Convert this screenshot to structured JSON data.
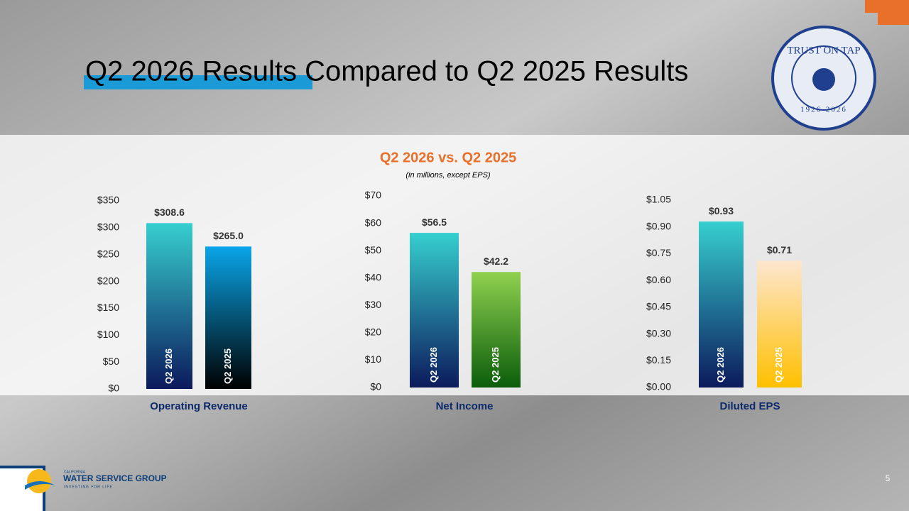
{
  "header": {
    "title": "Q2 2026 Results Compared to Q2 2025 Results",
    "panel_title": "Q2 2026 vs. Q2 2025",
    "panel_subtitle": "(in millions, except EPS)"
  },
  "seal": {
    "text": "TRUST ON TAP",
    "years": "1926-2026"
  },
  "footer": {
    "brand_top": "CALIFORNIA",
    "brand": "WATER SERVICE GROUP",
    "tagline": "INVESTING FOR LIFE",
    "page": "5"
  },
  "chart_data": [
    {
      "type": "bar",
      "xlabel": "Operating Revenue",
      "categories": [
        "Q2 2026",
        "Q2 2025"
      ],
      "values": [
        308.6,
        265.0
      ],
      "value_labels": [
        "$308.6",
        "$265.0"
      ],
      "colors": [
        [
          "#36cfcf",
          "#0c1a5c"
        ],
        [
          "#0aa5e8",
          "#000000"
        ]
      ],
      "ylim": [
        0,
        350
      ],
      "yticks": [
        {
          "value": 0,
          "label": "$0"
        },
        {
          "value": 50,
          "label": "$50"
        },
        {
          "value": 100,
          "label": "$100"
        },
        {
          "value": 150,
          "label": "$150"
        },
        {
          "value": 200,
          "label": "$200"
        },
        {
          "value": 250,
          "label": "$250"
        },
        {
          "value": 300,
          "label": "$300"
        },
        {
          "value": 350,
          "label": "$350"
        }
      ]
    },
    {
      "type": "bar",
      "xlabel": "Net Income",
      "categories": [
        "Q2 2026",
        "Q2 2025"
      ],
      "values": [
        56.5,
        42.2
      ],
      "value_labels": [
        "$56.5",
        "$42.2"
      ],
      "colors": [
        [
          "#36cfcf",
          "#0c1a5c"
        ],
        [
          "#8fd14f",
          "#0b5d0b"
        ]
      ],
      "ylim": [
        0,
        70
      ],
      "yticks": [
        {
          "value": 0,
          "label": "$0"
        },
        {
          "value": 10,
          "label": "$10"
        },
        {
          "value": 20,
          "label": "$20"
        },
        {
          "value": 30,
          "label": "$30"
        },
        {
          "value": 40,
          "label": "$40"
        },
        {
          "value": 50,
          "label": "$50"
        },
        {
          "value": 60,
          "label": "$60"
        },
        {
          "value": 70,
          "label": "$70"
        }
      ]
    },
    {
      "type": "bar",
      "xlabel": "Diluted EPS",
      "categories": [
        "Q2 2026",
        "Q2 2025"
      ],
      "values": [
        0.93,
        0.71
      ],
      "value_labels": [
        "$0.93",
        "$0.71"
      ],
      "colors": [
        [
          "#36cfcf",
          "#0c1a5c"
        ],
        [
          "#fde6cf",
          "#ffc000"
        ]
      ],
      "ylim": [
        0,
        1.05
      ],
      "yticks": [
        {
          "value": 0,
          "label": "$0.00"
        },
        {
          "value": 0.15,
          "label": "$0.15"
        },
        {
          "value": 0.3,
          "label": "$0.30"
        },
        {
          "value": 0.45,
          "label": "$0.45"
        },
        {
          "value": 0.6,
          "label": "$0.60"
        },
        {
          "value": 0.75,
          "label": "$0.75"
        },
        {
          "value": 0.9,
          "label": "$0.90"
        },
        {
          "value": 1.05,
          "label": "$1.05"
        }
      ]
    }
  ]
}
